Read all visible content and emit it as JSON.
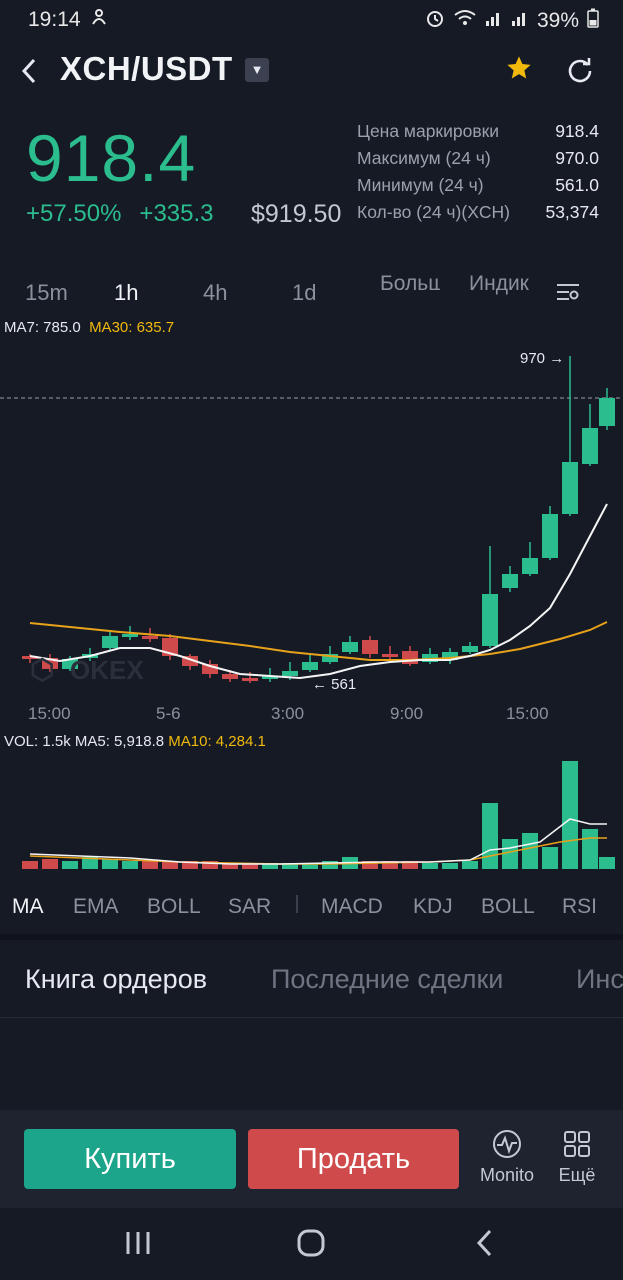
{
  "status_bar": {
    "time": "19:14",
    "battery": "39%"
  },
  "header": {
    "back_icon": "chevron-left-icon",
    "pair": "XCH/USDT",
    "dropdown_icon": "caret-down-icon",
    "favorite_icon": "star-icon",
    "favorite_color": "#f0b90b",
    "refresh_icon": "refresh-icon"
  },
  "ticker": {
    "last_price": "918.4",
    "change_pct": "+57.50%",
    "change_abs": "+335.3",
    "usd_price": "$919.50",
    "color_up": "#2bbd8e",
    "color_down": "#cf4b4b",
    "stats": [
      {
        "label": "Цена маркировки",
        "value": "918.4"
      },
      {
        "label": "Максимум (24 ч)",
        "value": "970.0"
      },
      {
        "label": "Минимум (24 ч)",
        "value": "561.0"
      },
      {
        "label": "Кол-во (24 ч)(XCH)",
        "value": "53,374"
      }
    ]
  },
  "timeframes": {
    "items": [
      "15m",
      "1h",
      "4h",
      "1d"
    ],
    "selected": "1h",
    "more": "Больше",
    "indicator": "Индикатор",
    "settings_icon": "chart-settings-icon"
  },
  "main_chart": {
    "ma7_label": "MA7: 785.0",
    "ma30_label": "MA30: 635.7",
    "high_marker": "970 →",
    "low_marker": "← 561",
    "watermark": "OKEX",
    "x_ticks": [
      "15:00",
      "5-6",
      "3:00",
      "9:00",
      "15:00"
    ]
  },
  "volume_chart": {
    "vol_label": "VOL: 1.5k",
    "ma5_label": "MA5: 5,918.8",
    "ma10_label": "MA10: 4,284.1"
  },
  "indicators": {
    "main": [
      "MA",
      "EMA",
      "BOLL",
      "SAR"
    ],
    "sub": [
      "MACD",
      "KDJ",
      "BOLL",
      "RSI"
    ],
    "selected": "MA"
  },
  "tabs": {
    "items": [
      "Книга ордеров",
      "Последние сделки",
      "Инс"
    ],
    "selected": "Книга ордеров"
  },
  "actions": {
    "buy": "Купить",
    "sell": "Продать",
    "monitor": "Monito",
    "monitor_icon": "pulse-icon",
    "more": "Ещё",
    "more_icon": "grid-icon"
  },
  "nav_bar": {
    "recent_icon": "recent-apps-icon",
    "home_icon": "home-icon",
    "back_icon": "back-icon"
  }
}
